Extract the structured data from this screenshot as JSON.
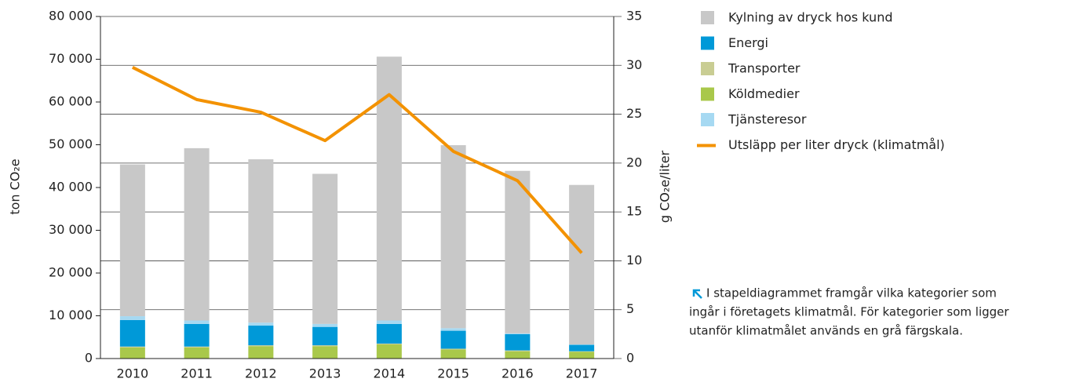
{
  "chart_data": {
    "type": "bar",
    "ylabel": "ton CO₂e",
    "y2label": "g CO₂e/liter",
    "categories": [
      "2010",
      "2011",
      "2012",
      "2013",
      "2014",
      "2015",
      "2016",
      "2017"
    ],
    "stacked": true,
    "series": [
      {
        "name": "Köldmedier",
        "color": "#a9c84b",
        "values": [
          2600,
          2600,
          2900,
          2900,
          3300,
          2100,
          1700,
          1600
        ]
      },
      {
        "name": "Transporter",
        "color": "#c9cd93",
        "values": [
          200,
          200,
          200,
          200,
          200,
          200,
          200,
          100
        ]
      },
      {
        "name": "Energi",
        "color": "#0099d8",
        "values": [
          6200,
          5300,
          4600,
          4300,
          4600,
          4200,
          3800,
          1500
        ]
      },
      {
        "name": "Tjänsteresor",
        "color": "#a6d9f2",
        "values": [
          900,
          800,
          700,
          700,
          800,
          600,
          200,
          100
        ]
      },
      {
        "name": "Kylning av dryck hos kund",
        "color": "#c8c8c8",
        "values": [
          35500,
          40300,
          38200,
          35100,
          61700,
          42800,
          38000,
          37300
        ]
      },
      {
        "name": "Utsläpp per liter dryck (klimatmål)",
        "color": "#f39200",
        "type": "line",
        "axis": "y2",
        "values": [
          29.8,
          26.5,
          25.2,
          22.3,
          27.0,
          21.2,
          18.2,
          10.8
        ]
      }
    ],
    "legend_order": [
      4,
      2,
      1,
      0,
      3,
      5
    ],
    "ylim": [
      0,
      80000
    ],
    "yticks": [
      {
        "value": 0,
        "label": "0"
      },
      {
        "value": 10000,
        "label": "10 000"
      },
      {
        "value": 20000,
        "label": "20 000"
      },
      {
        "value": 30000,
        "label": "30 000"
      },
      {
        "value": 40000,
        "label": "40 000"
      },
      {
        "value": 50000,
        "label": "50 000"
      },
      {
        "value": 60000,
        "label": "60 000"
      },
      {
        "value": 70000,
        "label": "70 000"
      },
      {
        "value": 80000,
        "label": "80 000"
      }
    ],
    "y2lim": [
      0,
      35
    ],
    "y2ticks": [
      0,
      5,
      10,
      15,
      20,
      25,
      30,
      35
    ],
    "annotation": [
      "I stapeldiagrammet framgår vilka kategorier som",
      "ingår i företagets klimatmål. För kategorier som ligger",
      "utanför klimatmålet används en grå färgskala."
    ]
  }
}
